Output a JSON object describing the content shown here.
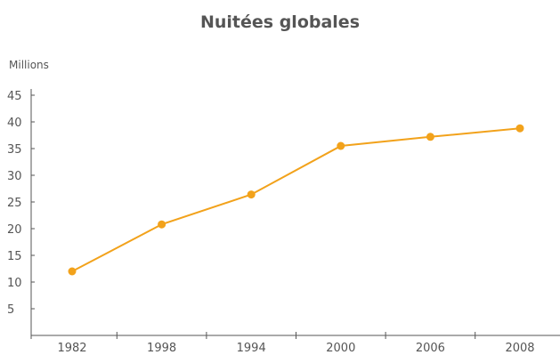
{
  "chart_data": {
    "type": "line",
    "title": "Nuitées globales",
    "ylabel": "Millions",
    "xlabel": "",
    "categories": [
      "1982",
      "1998",
      "1994",
      "2000",
      "2006",
      "2008"
    ],
    "series": [
      {
        "values": [
          12.0,
          20.8,
          26.4,
          35.5,
          37.2,
          38.8
        ]
      }
    ],
    "ylim": [
      0,
      45
    ],
    "yticks": [
      5,
      10,
      15,
      20,
      25,
      30,
      35,
      40,
      45
    ],
    "grid": false,
    "legend": "none",
    "colors": {
      "line": "#f2a21b",
      "axis": "#555555",
      "text": "#555555"
    }
  }
}
